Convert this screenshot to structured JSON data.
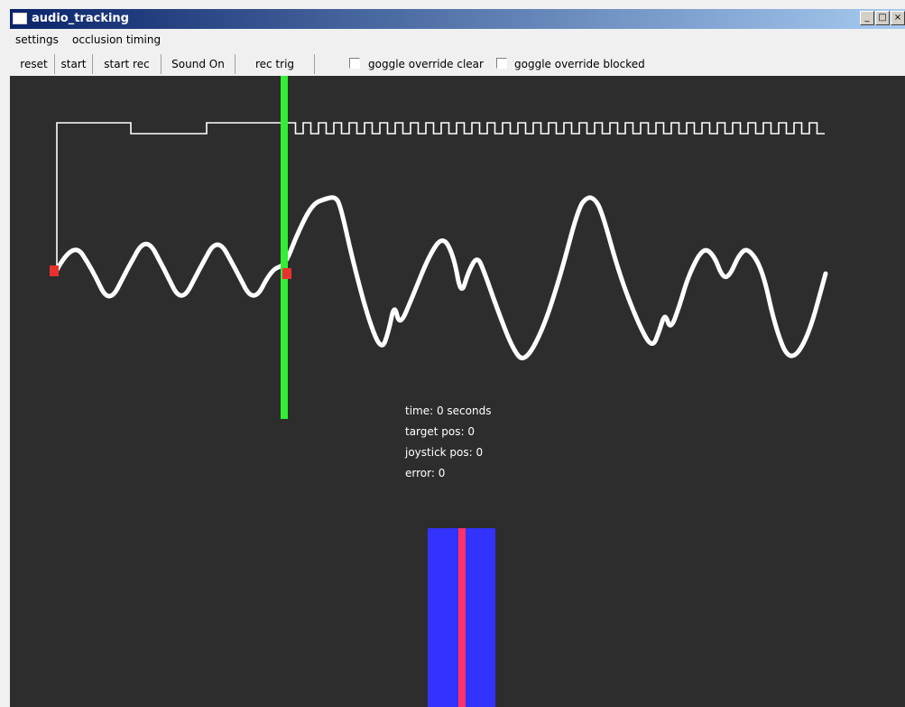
{
  "window": {
    "title": "audio_tracking",
    "buttons": [
      "_",
      "□",
      "×"
    ]
  },
  "menu": {
    "items": [
      "settings",
      "occlusion timing"
    ]
  },
  "toolbar": {
    "buttons": [
      "reset",
      "start",
      "start rec",
      "Sound On",
      "rec trig"
    ],
    "checkboxes": [
      {
        "label": "goggle override clear",
        "checked": false
      },
      {
        "label": "goggle override blocked",
        "checked": false
      }
    ]
  },
  "info": {
    "time": "time: 0 seconds",
    "target": "target pos: 0",
    "joystick": "joystick pos: 0",
    "error": "error: 0"
  },
  "colors": {
    "canvas_bg": "#2d2d2d",
    "trace": "#ffffff",
    "marker": "#e8312e",
    "time_cursor": "#33ee33",
    "target_bar": "#3333ff",
    "cursor_line": "#ff3366"
  },
  "icons": [
    "window-app-icon",
    "minimize-icon",
    "maximize-icon",
    "close-icon",
    "checkbox-icon"
  ]
}
